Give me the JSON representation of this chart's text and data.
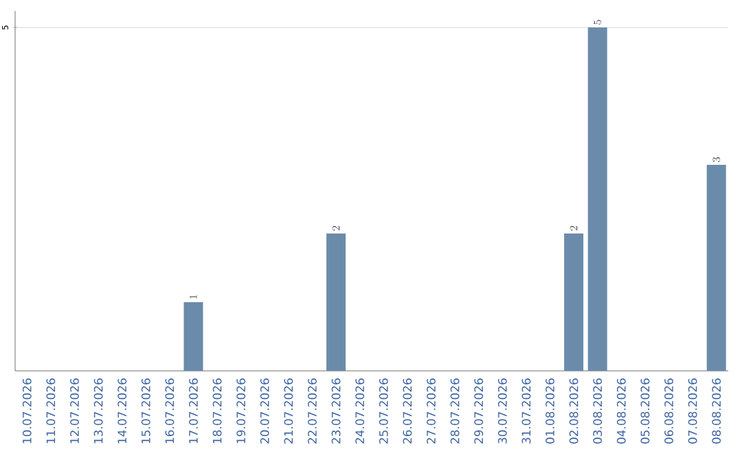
{
  "chart_data": {
    "type": "bar",
    "categories": [
      "10.07.2026",
      "11.07.2026",
      "12.07.2026",
      "13.07.2026",
      "14.07.2026",
      "15.07.2026",
      "16.07.2026",
      "17.07.2026",
      "18.07.2026",
      "19.07.2026",
      "20.07.2026",
      "21.07.2026",
      "22.07.2026",
      "23.07.2026",
      "24.07.2026",
      "25.07.2026",
      "26.07.2026",
      "27.07.2026",
      "28.07.2026",
      "29.07.2026",
      "30.07.2026",
      "31.07.2026",
      "01.08.2026",
      "02.08.2026",
      "03.08.2026",
      "04.08.2026",
      "05.08.2026",
      "06.08.2026",
      "07.08.2026",
      "08.08.2026"
    ],
    "values": [
      null,
      null,
      null,
      null,
      null,
      null,
      null,
      1,
      null,
      null,
      null,
      null,
      null,
      2,
      null,
      null,
      null,
      null,
      null,
      null,
      null,
      null,
      null,
      2,
      5,
      null,
      null,
      null,
      null,
      3
    ],
    "color": "#6b8bab",
    "ylim": [
      0,
      5.24
    ],
    "yticks": [
      5
    ],
    "grid": "y",
    "data_labels": true
  }
}
